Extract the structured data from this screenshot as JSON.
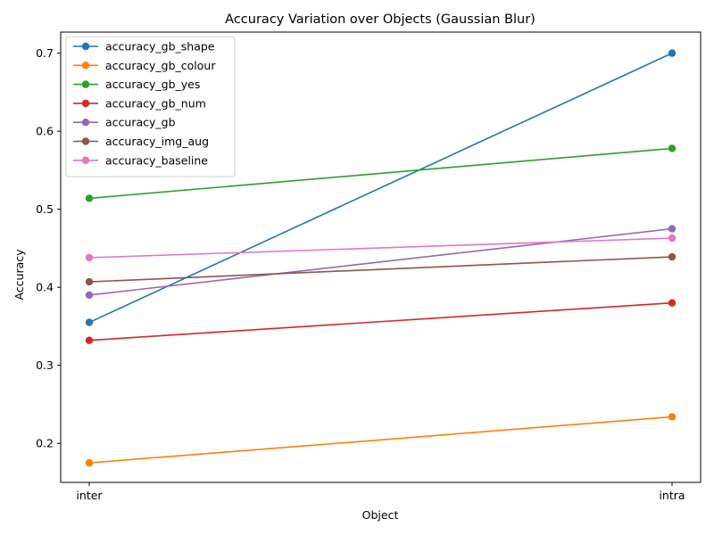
{
  "chart_data": {
    "type": "line",
    "title": "Accuracy Variation over Objects (Gaussian Blur)",
    "xlabel": "Object",
    "ylabel": "Accuracy",
    "categories": [
      "inter",
      "intra"
    ],
    "ylim": [
      0.15,
      0.727
    ],
    "yticks": [
      0.2,
      0.3,
      0.4,
      0.5,
      0.6,
      0.7
    ],
    "ytick_labels": [
      "0.2",
      "0.3",
      "0.4",
      "0.5",
      "0.6",
      "0.7"
    ],
    "grid": false,
    "legend_position": "top-left",
    "marker": "circle",
    "series": [
      {
        "name": "accuracy_gb_shape",
        "color": "#1f77b4",
        "values": [
          0.355,
          0.7
        ]
      },
      {
        "name": "accuracy_gb_colour",
        "color": "#ff7f0e",
        "values": [
          0.175,
          0.234
        ]
      },
      {
        "name": "accuracy_gb_yes",
        "color": "#2ca02c",
        "values": [
          0.514,
          0.578
        ]
      },
      {
        "name": "accuracy_gb_num",
        "color": "#d62728",
        "values": [
          0.332,
          0.38
        ]
      },
      {
        "name": "accuracy_gb",
        "color": "#9467bd",
        "values": [
          0.39,
          0.475
        ]
      },
      {
        "name": "accuracy_img_aug",
        "color": "#8c564b",
        "values": [
          0.407,
          0.439
        ]
      },
      {
        "name": "accuracy_baseline",
        "color": "#e377c2",
        "values": [
          0.438,
          0.463
        ]
      }
    ]
  }
}
